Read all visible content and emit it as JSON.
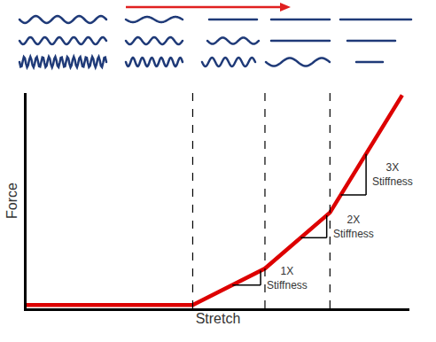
{
  "chart_data": {
    "type": "line",
    "x_label": "Stretch",
    "y_label": "Force",
    "x": [
      0,
      4.6,
      6.6,
      8.4,
      10.4
    ],
    "values": [
      0.15,
      0.15,
      1.85,
      4.45,
      9.9
    ],
    "color": "#dd0000",
    "xlim": [
      0,
      10.6
    ],
    "ylim": [
      0,
      10
    ],
    "tick_labels": false,
    "grid": false,
    "annotations": [
      "1X Stiffness",
      "2X Stiffness",
      "3X Stiffness"
    ]
  }
}
